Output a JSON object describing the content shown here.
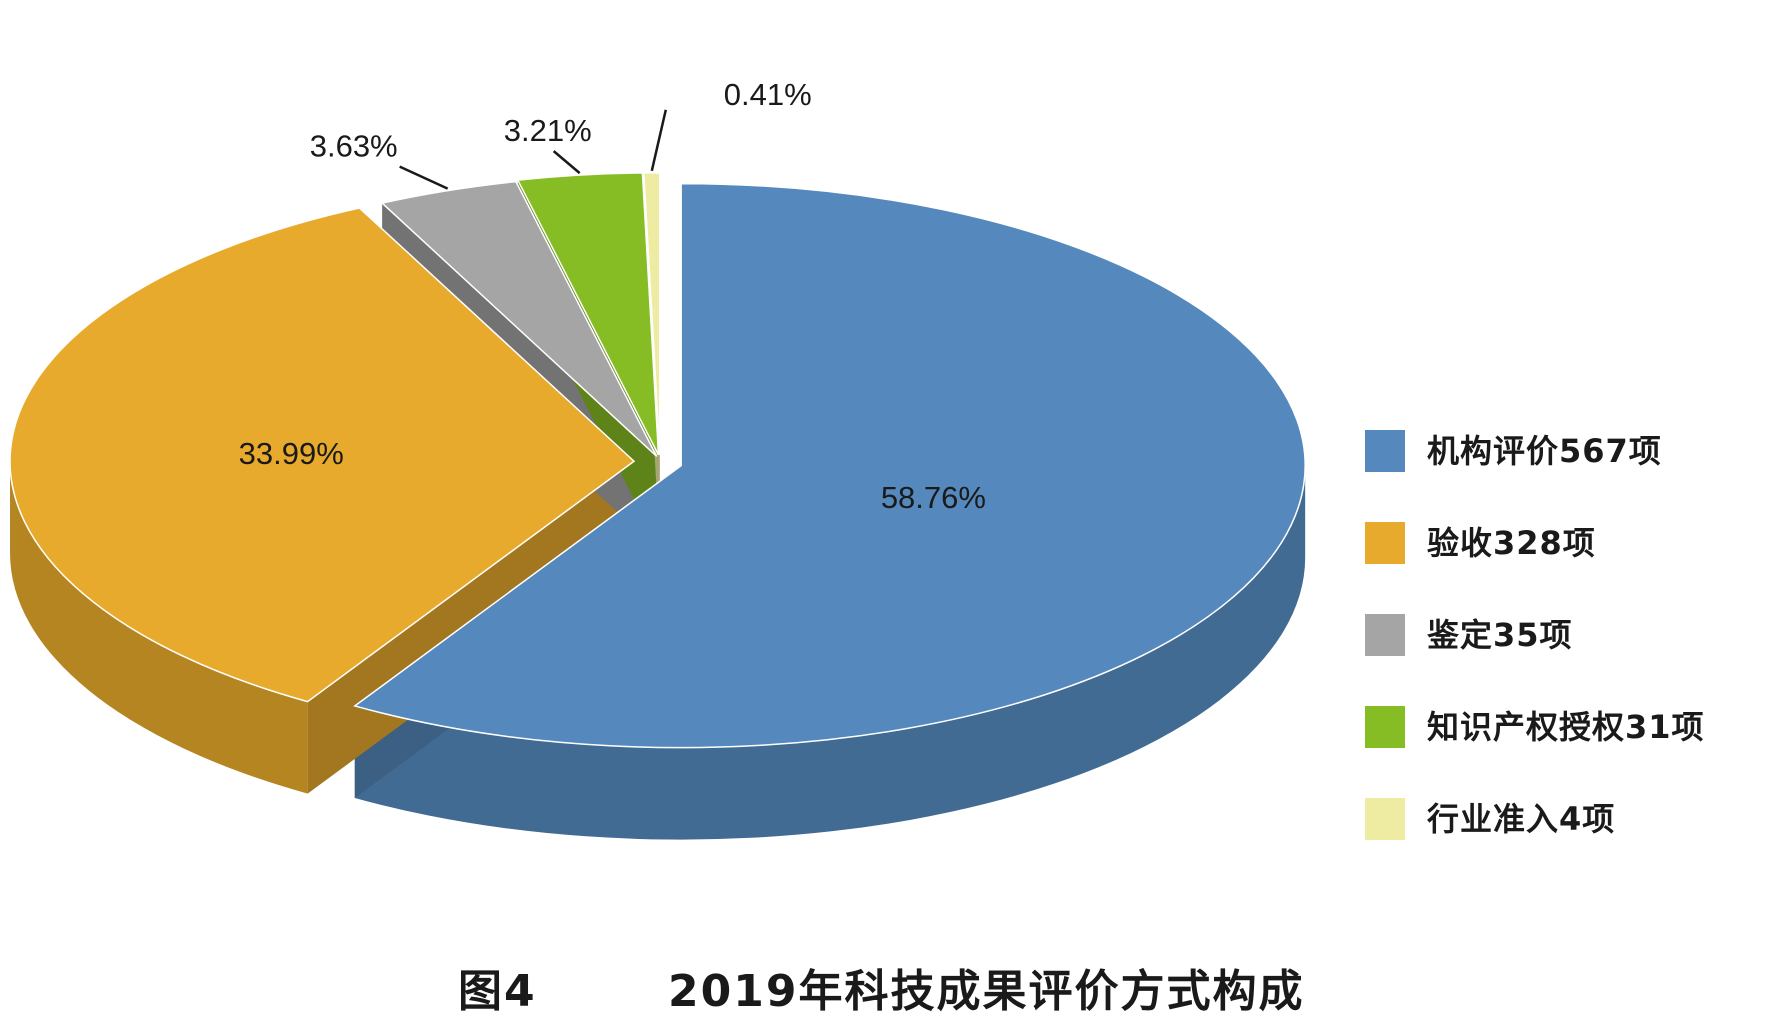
{
  "chart_data": {
    "type": "pie",
    "style": "3d-exploded",
    "slices": [
      {
        "label": "机构评价567项",
        "value": 58.76,
        "display": "58.76%",
        "color": "#5589bd"
      },
      {
        "label": "验收328项",
        "value": 33.99,
        "display": "33.99%",
        "color": "#e8aa2c"
      },
      {
        "label": "鉴定35项",
        "value": 3.63,
        "display": "3.63%",
        "color": "#a5a5a5"
      },
      {
        "label": "知识产权授权31项",
        "value": 3.21,
        "display": "3.21%",
        "color": "#86bc24"
      },
      {
        "label": "行业准入4项",
        "value": 0.41,
        "display": "0.41%",
        "color": "#eeeca3"
      }
    ],
    "legend_position": "right"
  },
  "caption": {
    "figure_number": "图4",
    "title": "2019年科技成果评价方式构成"
  }
}
